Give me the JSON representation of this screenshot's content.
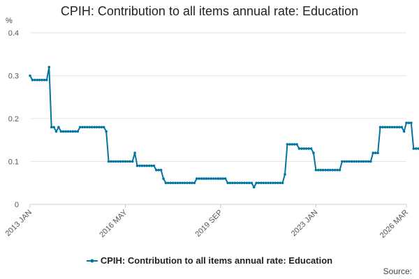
{
  "chart_data": {
    "type": "line",
    "title": "CPIH: Contribution to all items annual rate: Education",
    "ylabel": "%",
    "xlabel": "",
    "ylim": [
      0,
      0.4
    ],
    "yticks": [
      0,
      0.1,
      0.2,
      0.3,
      0.4
    ],
    "yticklabels": [
      "0",
      "0.1",
      "0.2",
      "0.3",
      "0.4"
    ],
    "xlim": [
      "2013 JAN",
      "2026 MAR"
    ],
    "xticks": [
      "2013 JAN",
      "2016 MAY",
      "2019 SEP",
      "2023 JAN",
      "2026 MAR"
    ],
    "grid": true,
    "legend_position": "bottom",
    "series": [
      {
        "name": "CPIH: Contribution to all items annual rate: Education",
        "color": "#0075a3",
        "start": "2013 JAN",
        "frequency": "monthly",
        "values": [
          0.3,
          0.29,
          0.29,
          0.29,
          0.29,
          0.29,
          0.29,
          0.29,
          0.32,
          0.18,
          0.18,
          0.17,
          0.18,
          0.17,
          0.17,
          0.17,
          0.17,
          0.17,
          0.17,
          0.17,
          0.17,
          0.18,
          0.18,
          0.18,
          0.18,
          0.18,
          0.18,
          0.18,
          0.18,
          0.18,
          0.18,
          0.18,
          0.17,
          0.1,
          0.1,
          0.1,
          0.1,
          0.1,
          0.1,
          0.1,
          0.1,
          0.1,
          0.1,
          0.1,
          0.12,
          0.09,
          0.09,
          0.09,
          0.09,
          0.09,
          0.09,
          0.09,
          0.09,
          0.08,
          0.08,
          0.08,
          0.06,
          0.05,
          0.05,
          0.05,
          0.05,
          0.05,
          0.05,
          0.05,
          0.05,
          0.05,
          0.05,
          0.05,
          0.05,
          0.05,
          0.06,
          0.06,
          0.06,
          0.06,
          0.06,
          0.06,
          0.06,
          0.06,
          0.06,
          0.06,
          0.06,
          0.06,
          0.06,
          0.05,
          0.05,
          0.05,
          0.05,
          0.05,
          0.05,
          0.05,
          0.05,
          0.05,
          0.05,
          0.05,
          0.04,
          0.05,
          0.05,
          0.05,
          0.05,
          0.05,
          0.05,
          0.05,
          0.05,
          0.05,
          0.05,
          0.05,
          0.05,
          0.07,
          0.14,
          0.14,
          0.14,
          0.14,
          0.14,
          0.13,
          0.13,
          0.13,
          0.13,
          0.13,
          0.13,
          0.12,
          0.08,
          0.08,
          0.08,
          0.08,
          0.08,
          0.08,
          0.08,
          0.08,
          0.08,
          0.08,
          0.08,
          0.1,
          0.1,
          0.1,
          0.1,
          0.1,
          0.1,
          0.1,
          0.1,
          0.1,
          0.1,
          0.1,
          0.1,
          0.1,
          0.12,
          0.12,
          0.12,
          0.18,
          0.18,
          0.18,
          0.18,
          0.18,
          0.18,
          0.18,
          0.18,
          0.18,
          0.18,
          0.17,
          0.19,
          0.19,
          0.19,
          0.13,
          0.13,
          0.13
        ]
      }
    ]
  },
  "footer": {
    "source_label": "Source:"
  }
}
